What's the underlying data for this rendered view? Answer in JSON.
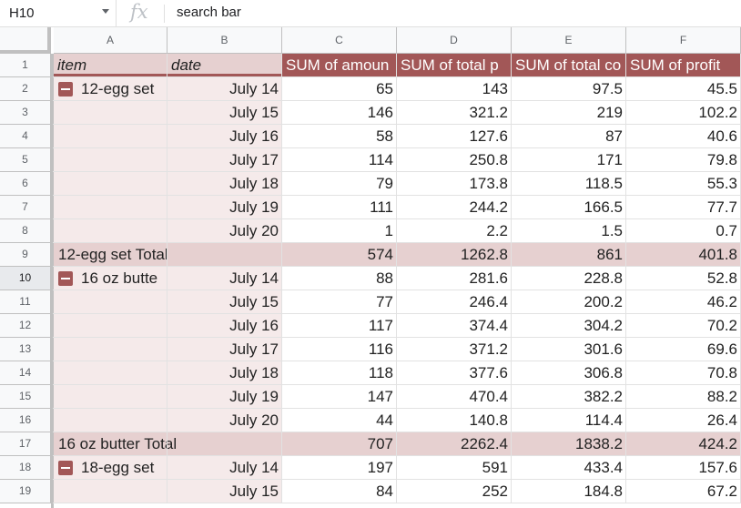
{
  "formula_bar": {
    "cell_ref": "H10",
    "fx": "fx",
    "input_value": "search bar"
  },
  "columns": [
    "A",
    "B",
    "C",
    "D",
    "E",
    "F"
  ],
  "row_numbers": [
    "1",
    "2",
    "3",
    "4",
    "5",
    "6",
    "7",
    "8",
    "9",
    "10",
    "11",
    "12",
    "13",
    "14",
    "15",
    "16",
    "17",
    "18",
    "19"
  ],
  "header_row": [
    "item",
    "date",
    "SUM of amoun",
    "SUM of total p",
    "SUM of total co",
    "SUM of profit"
  ],
  "rows": [
    {
      "item": "12-egg set",
      "collapse": true,
      "date": "July 14",
      "c": "65",
      "d": "143",
      "e": "97.5",
      "f": "45.5"
    },
    {
      "item": "",
      "date": "July 15",
      "c": "146",
      "d": "321.2",
      "e": "219",
      "f": "102.2"
    },
    {
      "item": "",
      "date": "July 16",
      "c": "58",
      "d": "127.6",
      "e": "87",
      "f": "40.6"
    },
    {
      "item": "",
      "date": "July 17",
      "c": "114",
      "d": "250.8",
      "e": "171",
      "f": "79.8"
    },
    {
      "item": "",
      "date": "July 18",
      "c": "79",
      "d": "173.8",
      "e": "118.5",
      "f": "55.3"
    },
    {
      "item": "",
      "date": "July 19",
      "c": "111",
      "d": "244.2",
      "e": "166.5",
      "f": "77.7"
    },
    {
      "item": "",
      "date": "July 20",
      "c": "1",
      "d": "2.2",
      "e": "1.5",
      "f": "0.7"
    },
    {
      "item": "12-egg set Total",
      "total": true,
      "date": "",
      "c": "574",
      "d": "1262.8",
      "e": "861",
      "f": "401.8"
    },
    {
      "item": "16 oz butte",
      "collapse": true,
      "date": "July 14",
      "c": "88",
      "d": "281.6",
      "e": "228.8",
      "f": "52.8"
    },
    {
      "item": "",
      "date": "July 15",
      "c": "77",
      "d": "246.4",
      "e": "200.2",
      "f": "46.2"
    },
    {
      "item": "",
      "date": "July 16",
      "c": "117",
      "d": "374.4",
      "e": "304.2",
      "f": "70.2"
    },
    {
      "item": "",
      "date": "July 17",
      "c": "116",
      "d": "371.2",
      "e": "301.6",
      "f": "69.6"
    },
    {
      "item": "",
      "date": "July 18",
      "c": "118",
      "d": "377.6",
      "e": "306.8",
      "f": "70.8"
    },
    {
      "item": "",
      "date": "July 19",
      "c": "147",
      "d": "470.4",
      "e": "382.2",
      "f": "88.2"
    },
    {
      "item": "",
      "date": "July 20",
      "c": "44",
      "d": "140.8",
      "e": "114.4",
      "f": "26.4"
    },
    {
      "item": "16 oz butter Total",
      "total": true,
      "date": "",
      "c": "707",
      "d": "2262.4",
      "e": "1838.2",
      "f": "424.2"
    },
    {
      "item": "18-egg set",
      "collapse": true,
      "date": "July 14",
      "c": "197",
      "d": "591",
      "e": "433.4",
      "f": "157.6"
    },
    {
      "item": "",
      "date": "July 15",
      "c": "84",
      "d": "252",
      "e": "184.8",
      "f": "67.2"
    }
  ],
  "selected_row": "10",
  "colors": {
    "header_bg": "#e6d0d0",
    "header_dark_bg": "#a25757",
    "header_dark_text": "#ffffff",
    "item_col_bg": "#f5eaea",
    "total_bg": "#e6d0d0",
    "total_c_bg": "#f2e6e6"
  }
}
